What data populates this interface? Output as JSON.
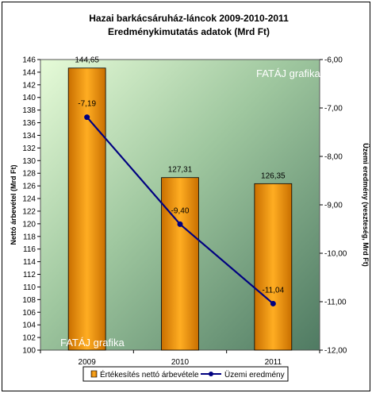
{
  "chart_data": {
    "type": "bar",
    "title": "Hazai barkácsáruház-láncok 2009-2010-2011",
    "subtitle": "Eredménykimutatás adatok (Mrd Ft)",
    "categories": [
      "2009",
      "2010",
      "2011"
    ],
    "series": [
      {
        "name": "Értékesítés nettó árbevétele",
        "type": "bar",
        "axis": "left",
        "values": [
          144.65,
          127.31,
          126.35
        ],
        "labels": [
          "144,65",
          "127,31",
          "126,35"
        ],
        "color": "#ff9900"
      },
      {
        "name": "Üzemi eredmény",
        "type": "line",
        "axis": "right",
        "values": [
          -7.19,
          -9.4,
          -11.04
        ],
        "labels": [
          "-7,19",
          "-9,40",
          "-11,04"
        ],
        "color": "#000080"
      }
    ],
    "ylabel": "Nettó árbevétel (Mrd Ft)",
    "y2label": "Üzemi eredmény (veszteség, Mrd Ft)",
    "ylim": [
      100,
      146
    ],
    "y2lim": [
      -12,
      -6
    ],
    "yticks": [
      "100",
      "102",
      "104",
      "106",
      "108",
      "110",
      "112",
      "114",
      "116",
      "118",
      "120",
      "122",
      "124",
      "126",
      "128",
      "130",
      "132",
      "134",
      "136",
      "138",
      "140",
      "142",
      "144",
      "146"
    ],
    "y2ticks": [
      "-6,00",
      "-7,00",
      "-8,00",
      "-9,00",
      "-10,00",
      "-11,00",
      "-12,00"
    ],
    "watermarks": [
      "FATÁJ grafika",
      "FATÁJ grafika"
    ],
    "legend_position": "bottom",
    "grid": false
  }
}
